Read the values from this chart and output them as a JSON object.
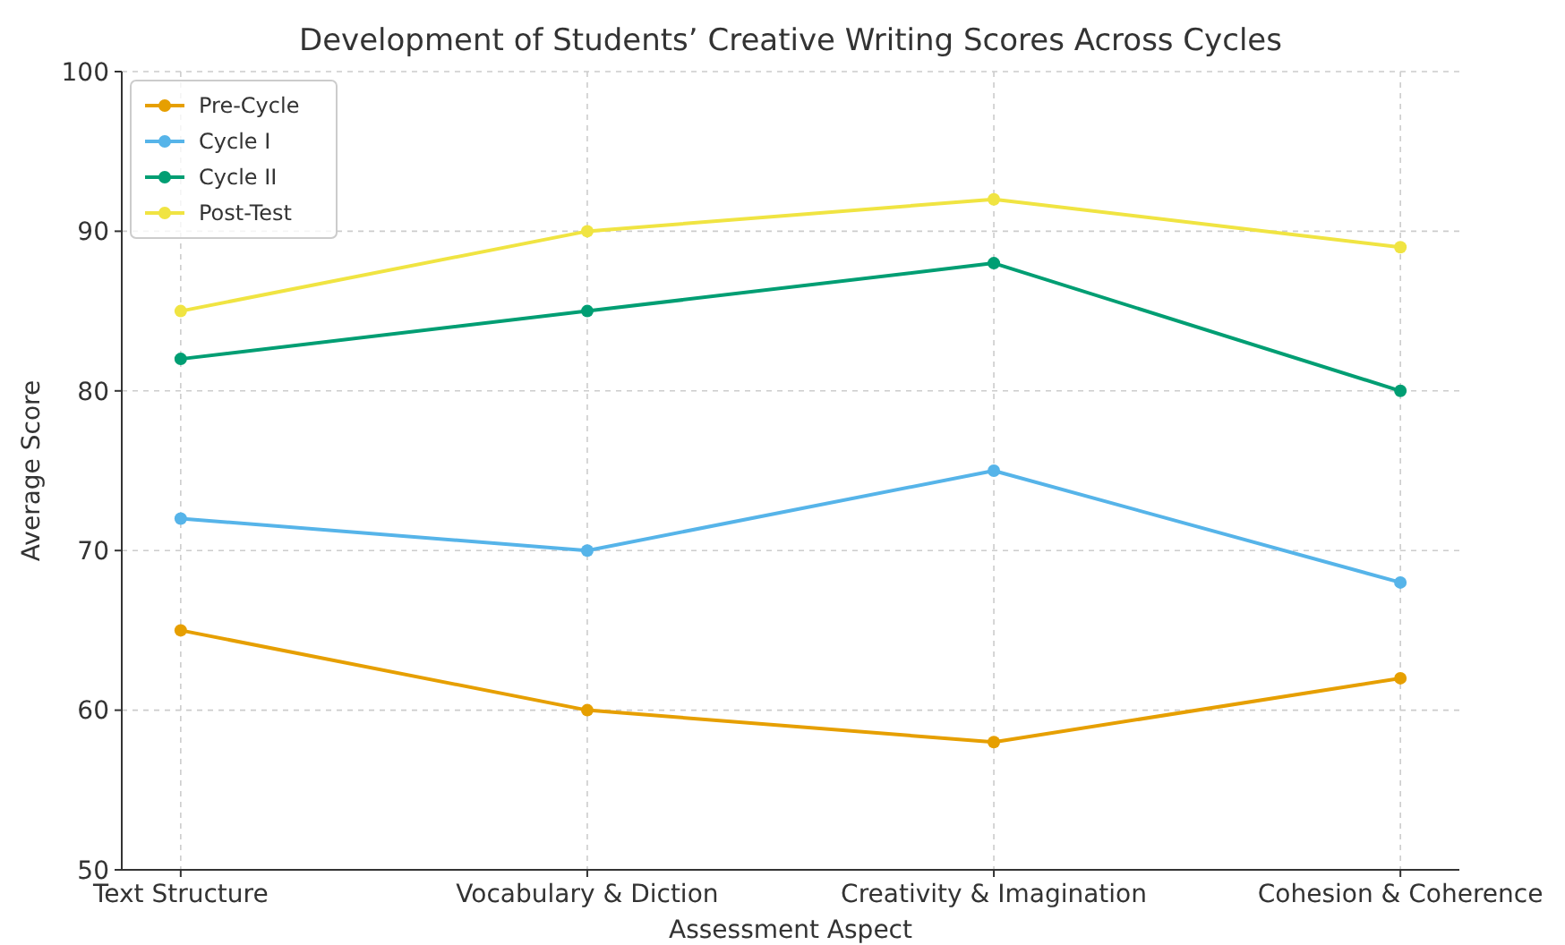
{
  "chart_data": {
    "type": "line",
    "title": "Development of Students’ Creative Writing Scores Across Cycles",
    "xlabel": "Assessment Aspect",
    "ylabel": "Average Score",
    "categories": [
      "Text Structure",
      "Vocabulary & Diction",
      "Creativity & Imagination",
      "Cohesion & Coherence"
    ],
    "series": [
      {
        "name": "Pre-Cycle",
        "color": "#e69f00",
        "values": [
          65,
          60,
          58,
          62
        ]
      },
      {
        "name": "Cycle I",
        "color": "#56b4e9",
        "values": [
          72,
          70,
          75,
          68
        ]
      },
      {
        "name": "Cycle II",
        "color": "#009e73",
        "values": [
          82,
          85,
          88,
          80
        ]
      },
      {
        "name": "Post-Test",
        "color": "#f0e442",
        "values": [
          85,
          90,
          92,
          89
        ]
      }
    ],
    "ylim": [
      50,
      100
    ],
    "yticks": [
      50,
      60,
      70,
      80,
      90,
      100
    ],
    "grid": true,
    "legend": "top left",
    "marker": "circle",
    "line_style": "solid"
  }
}
